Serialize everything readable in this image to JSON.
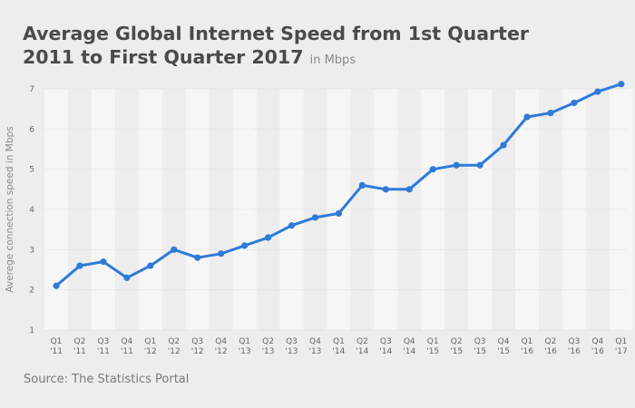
{
  "title": "Average Global Internet Speed from 1st Quarter 2011 to First Quarter 2017",
  "subtitle": "in Mbps",
  "source": "Source: The Statistics Portal",
  "colors": {
    "line": "#2f7ad8",
    "background": "#ededed",
    "band": "#f6f6f6",
    "grid": "#d6d6d6"
  },
  "chart_data": {
    "type": "line",
    "title": "Average Global Internet Speed from 1st Quarter 2011 to First Quarter 2017",
    "subtitle": "in Mbps",
    "xlabel": "",
    "ylabel": "Averege connection speed in Mbps",
    "ylim": [
      1,
      7
    ],
    "yticks": [
      1,
      2,
      3,
      4,
      5,
      6,
      7
    ],
    "grid": true,
    "categories": [
      [
        "Q1",
        "'11"
      ],
      [
        "Q2",
        "'11"
      ],
      [
        "Q3",
        "'11"
      ],
      [
        "Q4",
        "'11"
      ],
      [
        "Q1",
        "'12"
      ],
      [
        "Q2",
        "'12"
      ],
      [
        "Q3",
        "'12"
      ],
      [
        "Q4",
        "'12"
      ],
      [
        "Q1",
        "'13"
      ],
      [
        "Q2",
        "'13"
      ],
      [
        "Q3",
        "'13"
      ],
      [
        "Q4",
        "'13"
      ],
      [
        "Q1",
        "'14"
      ],
      [
        "Q2",
        "'14"
      ],
      [
        "Q3",
        "'14"
      ],
      [
        "Q4",
        "'14"
      ],
      [
        "Q1",
        "'15"
      ],
      [
        "Q2",
        "'15"
      ],
      [
        "Q3",
        "'15"
      ],
      [
        "Q4",
        "'15"
      ],
      [
        "Q1",
        "'16"
      ],
      [
        "Q2",
        "'16"
      ],
      [
        "Q3",
        "'16"
      ],
      [
        "Q4",
        "'16"
      ],
      [
        "Q1",
        "'17"
      ]
    ],
    "series": [
      {
        "values": [
          2.1,
          2.6,
          2.7,
          2.3,
          2.6,
          3.0,
          2.8,
          2.9,
          3.1,
          3.3,
          3.6,
          3.8,
          3.9,
          4.6,
          4.5,
          4.5,
          5.0,
          5.1,
          5.1,
          5.6,
          6.3,
          6.4,
          6.65,
          6.93,
          7.12
        ]
      }
    ]
  }
}
